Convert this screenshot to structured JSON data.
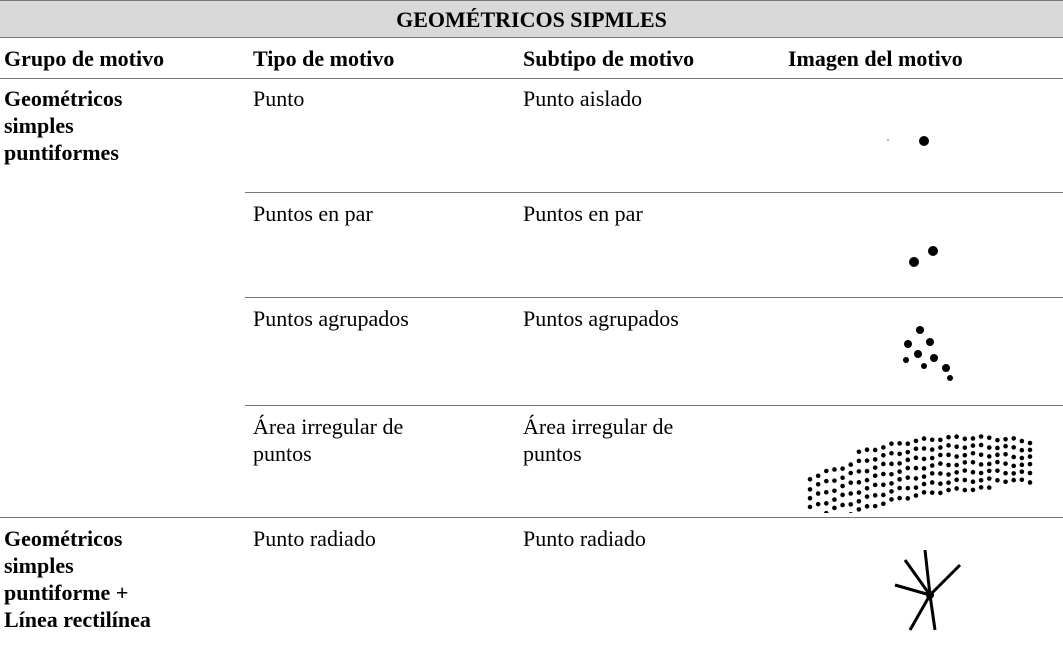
{
  "table": {
    "title": "GEOMÉTRICOS SIPMLES",
    "header": [
      "Grupo de motivo",
      "Tipo de motivo",
      "Subtipo de motivo",
      "Imagen del motivo"
    ],
    "groups": [
      {
        "name": "Geométricos simples puntiformes",
        "rows": [
          [
            "Punto",
            "Punto aislado"
          ],
          [
            "Puntos en par",
            "Puntos en par"
          ],
          [
            "Puntos agrupados",
            "Puntos agrupados"
          ],
          [
            "Área irregular de puntos",
            "Área irregular de puntos"
          ]
        ]
      },
      {
        "name": "Geométricos simples puntiforme + Línea rectilínea",
        "rows": [
          [
            "Punto radiado",
            "Punto radiado"
          ]
        ]
      }
    ]
  }
}
